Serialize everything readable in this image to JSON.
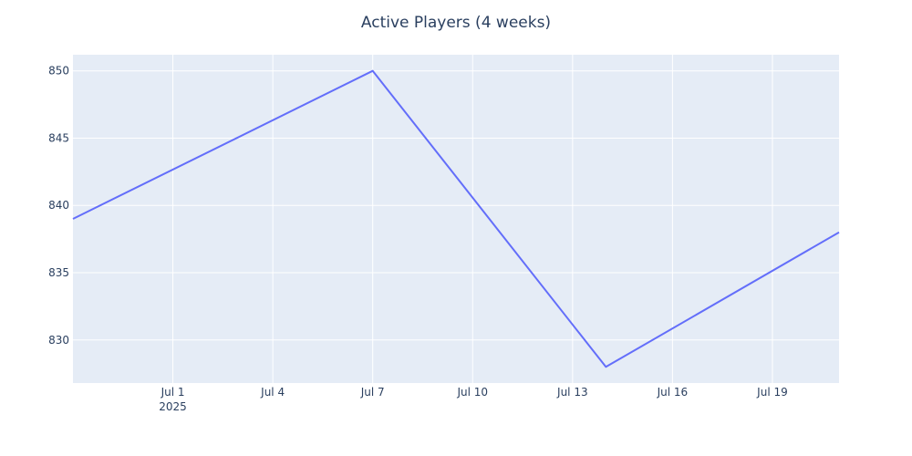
{
  "chart_data": {
    "type": "line",
    "title": "Active Players (4 weeks)",
    "xlabel": "",
    "ylabel": "",
    "x_axis_type": "date",
    "xlim": [
      "2025-06-28",
      "2025-07-21"
    ],
    "ylim": [
      826.8,
      851.2
    ],
    "x_ticks": [
      {
        "date": "2025-07-01",
        "label": "Jul 1",
        "sublabel": "2025"
      },
      {
        "date": "2025-07-04",
        "label": "Jul 4",
        "sublabel": ""
      },
      {
        "date": "2025-07-07",
        "label": "Jul 7",
        "sublabel": ""
      },
      {
        "date": "2025-07-10",
        "label": "Jul 10",
        "sublabel": ""
      },
      {
        "date": "2025-07-13",
        "label": "Jul 13",
        "sublabel": ""
      },
      {
        "date": "2025-07-16",
        "label": "Jul 16",
        "sublabel": ""
      },
      {
        "date": "2025-07-19",
        "label": "Jul 19",
        "sublabel": ""
      }
    ],
    "y_ticks": [
      {
        "value": 830,
        "label": "830"
      },
      {
        "value": 835,
        "label": "835"
      },
      {
        "value": 840,
        "label": "840"
      },
      {
        "value": 845,
        "label": "845"
      },
      {
        "value": 850,
        "label": "850"
      }
    ],
    "series": [
      {
        "color": "#636efa",
        "x": [
          "2025-06-28",
          "2025-07-07",
          "2025-07-14",
          "2025-07-21"
        ],
        "y": [
          839,
          850,
          828,
          838
        ]
      }
    ],
    "grid": true,
    "legend": "none",
    "colors": {
      "plot_bg": "#e5ecf6",
      "paper_bg": "#ffffff",
      "text": "#2a3f5f"
    }
  }
}
